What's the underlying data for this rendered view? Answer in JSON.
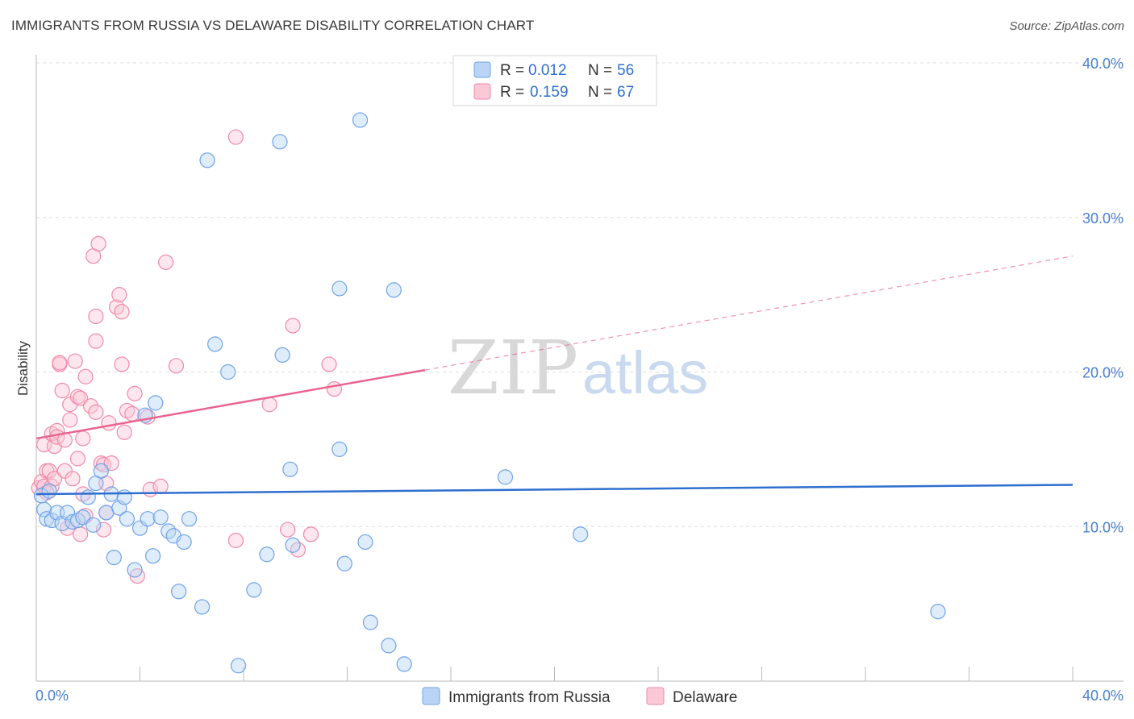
{
  "title": "IMMIGRANTS FROM RUSSIA VS DELAWARE DISABILITY CORRELATION CHART",
  "source": "Source: ZipAtlas.com",
  "watermark": {
    "zip": "ZIP",
    "atlas": "atlas"
  },
  "legend": {
    "rows": [
      {
        "r_label": "R = ",
        "r_value": "0.012",
        "n_label": "N = ",
        "n_value": "56"
      },
      {
        "r_label": "R = ",
        "r_value": "0.159",
        "n_label": "N = ",
        "n_value": "67"
      }
    ]
  },
  "chart_data": {
    "type": "scatter",
    "title": "IMMIGRANTS FROM RUSSIA VS DELAWARE DISABILITY CORRELATION CHART",
    "ylabel": "Disability",
    "xlabel": "",
    "xlim": [
      0,
      40
    ],
    "ylim": [
      0,
      40
    ],
    "x_tick_labels": [
      "0.0%",
      "40.0%"
    ],
    "y_ticks": [
      10,
      20,
      30,
      40
    ],
    "y_tick_labels": [
      "10.0%",
      "20.0%",
      "30.0%",
      "40.0%"
    ],
    "colors": {
      "russia": "#6fa3e8",
      "delaware": "#f08aaa",
      "russia_line": "#2e6fd0",
      "delaware_line": "#e8648f",
      "tick": "#4a7fd0"
    },
    "series": [
      {
        "name": "Immigrants from Russia",
        "R": 0.012,
        "N": 56,
        "trend": {
          "x": [
            0,
            40
          ],
          "y": [
            12.1,
            12.7
          ],
          "dashed_from": null
        },
        "points": [
          [
            0.2,
            12.0
          ],
          [
            0.3,
            11.1
          ],
          [
            0.4,
            10.5
          ],
          [
            0.6,
            10.4
          ],
          [
            0.8,
            10.9
          ],
          [
            1.0,
            10.2
          ],
          [
            1.2,
            10.9
          ],
          [
            1.4,
            10.3
          ],
          [
            1.6,
            10.4
          ],
          [
            1.8,
            10.6
          ],
          [
            2.0,
            11.9
          ],
          [
            2.2,
            10.1
          ],
          [
            2.3,
            12.8
          ],
          [
            2.5,
            13.6
          ],
          [
            2.7,
            10.9
          ],
          [
            2.9,
            12.1
          ],
          [
            3.0,
            8.0
          ],
          [
            3.2,
            11.2
          ],
          [
            3.4,
            11.9
          ],
          [
            3.5,
            10.5
          ],
          [
            3.8,
            7.2
          ],
          [
            4.0,
            9.9
          ],
          [
            4.2,
            17.2
          ],
          [
            4.3,
            10.5
          ],
          [
            4.5,
            8.1
          ],
          [
            4.6,
            18.0
          ],
          [
            4.8,
            10.6
          ],
          [
            5.1,
            9.7
          ],
          [
            5.3,
            9.4
          ],
          [
            5.5,
            5.8
          ],
          [
            5.7,
            9.0
          ],
          [
            5.9,
            10.5
          ],
          [
            6.4,
            4.8
          ],
          [
            6.6,
            33.7
          ],
          [
            6.9,
            21.8
          ],
          [
            7.4,
            20.0
          ],
          [
            7.8,
            1.0
          ],
          [
            8.4,
            5.9
          ],
          [
            8.9,
            8.2
          ],
          [
            9.4,
            34.9
          ],
          [
            9.5,
            21.1
          ],
          [
            9.8,
            13.7
          ],
          [
            9.9,
            8.8
          ],
          [
            11.7,
            25.4
          ],
          [
            11.7,
            15.0
          ],
          [
            11.9,
            7.6
          ],
          [
            12.5,
            36.3
          ],
          [
            12.7,
            9.0
          ],
          [
            12.9,
            3.8
          ],
          [
            13.6,
            2.3
          ],
          [
            13.8,
            25.3
          ],
          [
            14.2,
            1.1
          ],
          [
            18.1,
            13.2
          ],
          [
            21.0,
            9.5
          ],
          [
            34.8,
            4.5
          ],
          [
            0.5,
            12.3
          ]
        ]
      },
      {
        "name": "Delaware",
        "R": 0.159,
        "N": 67,
        "trend": {
          "x": [
            0,
            40
          ],
          "y": [
            15.7,
            27.5
          ],
          "dashed_from": 15
        },
        "points": [
          [
            0.1,
            12.5
          ],
          [
            0.2,
            12.9
          ],
          [
            0.3,
            12.6
          ],
          [
            0.3,
            15.3
          ],
          [
            0.4,
            13.6
          ],
          [
            0.5,
            13.6
          ],
          [
            0.6,
            12.6
          ],
          [
            0.6,
            16.0
          ],
          [
            0.7,
            15.2
          ],
          [
            0.7,
            13.1
          ],
          [
            0.8,
            16.2
          ],
          [
            0.8,
            15.8
          ],
          [
            0.9,
            20.5
          ],
          [
            0.9,
            20.6
          ],
          [
            1.0,
            18.8
          ],
          [
            1.1,
            13.6
          ],
          [
            1.1,
            15.6
          ],
          [
            1.2,
            9.9
          ],
          [
            1.3,
            17.9
          ],
          [
            1.3,
            16.9
          ],
          [
            1.4,
            13.1
          ],
          [
            1.5,
            20.7
          ],
          [
            1.6,
            18.4
          ],
          [
            1.6,
            14.4
          ],
          [
            1.7,
            18.3
          ],
          [
            1.7,
            9.5
          ],
          [
            1.8,
            12.1
          ],
          [
            1.8,
            15.7
          ],
          [
            1.9,
            19.7
          ],
          [
            1.9,
            10.7
          ],
          [
            2.1,
            17.8
          ],
          [
            2.2,
            27.5
          ],
          [
            2.3,
            22.0
          ],
          [
            2.3,
            17.4
          ],
          [
            2.3,
            23.6
          ],
          [
            2.4,
            28.3
          ],
          [
            2.5,
            14.1
          ],
          [
            2.6,
            14.0
          ],
          [
            2.6,
            9.8
          ],
          [
            2.7,
            12.8
          ],
          [
            2.7,
            10.9
          ],
          [
            2.8,
            16.7
          ],
          [
            2.9,
            14.1
          ],
          [
            3.1,
            24.2
          ],
          [
            3.2,
            25.0
          ],
          [
            3.3,
            20.5
          ],
          [
            3.3,
            23.9
          ],
          [
            3.4,
            16.1
          ],
          [
            3.5,
            17.5
          ],
          [
            3.7,
            17.3
          ],
          [
            3.8,
            18.6
          ],
          [
            3.9,
            6.8
          ],
          [
            4.3,
            17.1
          ],
          [
            4.4,
            12.4
          ],
          [
            4.8,
            12.6
          ],
          [
            5.0,
            27.1
          ],
          [
            5.4,
            20.4
          ],
          [
            7.7,
            35.2
          ],
          [
            7.7,
            9.1
          ],
          [
            9.0,
            17.9
          ],
          [
            9.7,
            9.8
          ],
          [
            9.9,
            23.0
          ],
          [
            10.1,
            8.5
          ],
          [
            10.6,
            9.5
          ],
          [
            11.3,
            20.5
          ],
          [
            11.5,
            18.9
          ],
          [
            0.4,
            12.2
          ]
        ]
      }
    ],
    "legend_labels": [
      "Immigrants from Russia",
      "Delaware"
    ]
  }
}
